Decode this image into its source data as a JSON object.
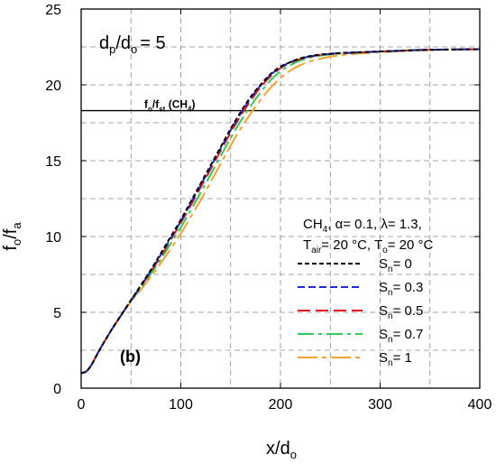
{
  "chart_data": {
    "type": "line",
    "xlabel": {
      "main": "x/d",
      "sub": "o"
    },
    "ylabel": {
      "main": "f",
      "sub1": "o",
      "mid": "/f",
      "sub2": "a"
    },
    "xlim": [
      0,
      400
    ],
    "ylim": [
      0,
      25
    ],
    "xticks": [
      0,
      100,
      200,
      300,
      400
    ],
    "yticks": [
      0,
      5,
      10,
      15,
      20,
      25
    ],
    "grid": "dashed",
    "annotations": {
      "ratio_label": {
        "d": "d",
        "p": "p",
        "slash": "/d",
        "o": "o",
        "rest": "= 5"
      },
      "panel_label": "(b)",
      "stoich_line_value": 18.3,
      "stoich_label": {
        "f": "f",
        "o": "o",
        "slash": "/f",
        "st": "st",
        "rest": " (CH",
        "four": "4",
        "close": ")"
      },
      "conditions_line1": {
        "a": "CH",
        "b": "4",
        "c": ", α= 0.1, λ= 1.3,"
      },
      "conditions_line2": {
        "a": "T",
        "b": "air",
        "c": "= 20 °C, T",
        "d": "o",
        "e": "= 20 °C"
      }
    },
    "legend_position": "right-center",
    "series": [
      {
        "name_main": "S",
        "name_sub": "n",
        "name_rest": "= 0",
        "color": "#000000",
        "dash": "5,3",
        "x": [
          0,
          5,
          10,
          15,
          20,
          30,
          40,
          50,
          60,
          70,
          80,
          90,
          100,
          110,
          120,
          130,
          140,
          150,
          160,
          170,
          180,
          190,
          200,
          210,
          220,
          230,
          240,
          250,
          260,
          280,
          300,
          320,
          340,
          360,
          380,
          400
        ],
        "y": [
          1.0,
          1.1,
          1.5,
          2.1,
          2.7,
          3.8,
          4.8,
          5.8,
          6.8,
          7.8,
          8.9,
          10.0,
          11.1,
          12.3,
          13.5,
          14.7,
          15.9,
          17.1,
          18.2,
          19.2,
          20.0,
          20.7,
          21.2,
          21.5,
          21.75,
          21.9,
          22.0,
          22.05,
          22.1,
          22.15,
          22.2,
          22.25,
          22.3,
          22.32,
          22.34,
          22.35
        ]
      },
      {
        "name_main": "S",
        "name_sub": "n",
        "name_rest": "= 0.3",
        "color": "#1f2bd8",
        "dash": "8,4",
        "x": [
          0,
          5,
          10,
          15,
          20,
          30,
          40,
          50,
          60,
          70,
          80,
          90,
          100,
          110,
          120,
          130,
          140,
          150,
          160,
          170,
          180,
          190,
          200,
          210,
          220,
          230,
          240,
          250,
          260,
          280,
          300,
          320,
          340,
          360,
          380,
          400
        ],
        "y": [
          1.0,
          1.1,
          1.5,
          2.1,
          2.7,
          3.8,
          4.8,
          5.8,
          6.75,
          7.75,
          8.8,
          9.9,
          11.0,
          12.2,
          13.4,
          14.6,
          15.8,
          17.0,
          18.1,
          19.1,
          19.95,
          20.65,
          21.15,
          21.5,
          21.72,
          21.88,
          21.98,
          22.04,
          22.09,
          22.15,
          22.2,
          22.25,
          22.3,
          22.32,
          22.34,
          22.35
        ]
      },
      {
        "name_main": "S",
        "name_sub": "n",
        "name_rest": "= 0.5",
        "color": "#e8131b",
        "dash": "14,6",
        "x": [
          0,
          5,
          10,
          15,
          20,
          30,
          40,
          50,
          60,
          70,
          80,
          90,
          100,
          110,
          120,
          130,
          140,
          150,
          160,
          170,
          180,
          190,
          200,
          210,
          220,
          230,
          240,
          250,
          260,
          280,
          300,
          320,
          340,
          360,
          380,
          400
        ],
        "y": [
          1.0,
          1.1,
          1.5,
          2.1,
          2.7,
          3.8,
          4.8,
          5.8,
          6.7,
          7.7,
          8.7,
          9.8,
          10.9,
          12.05,
          13.25,
          14.45,
          15.65,
          16.85,
          17.95,
          18.95,
          19.85,
          20.55,
          21.1,
          21.45,
          21.7,
          21.86,
          21.97,
          22.03,
          22.08,
          22.14,
          22.2,
          22.25,
          22.3,
          22.32,
          22.34,
          22.35
        ]
      },
      {
        "name_main": "S",
        "name_sub": "n",
        "name_rest": "= 0.7",
        "color": "#2ecb55",
        "dash": "18,5,4,5",
        "x": [
          0,
          5,
          10,
          15,
          20,
          30,
          40,
          50,
          60,
          70,
          80,
          90,
          100,
          110,
          120,
          130,
          140,
          150,
          160,
          170,
          180,
          190,
          200,
          210,
          220,
          230,
          240,
          250,
          260,
          280,
          300,
          320,
          340,
          360,
          380,
          400
        ],
        "y": [
          1.0,
          1.1,
          1.5,
          2.1,
          2.7,
          3.8,
          4.8,
          5.75,
          6.6,
          7.55,
          8.5,
          9.55,
          10.6,
          11.75,
          12.9,
          14.1,
          15.3,
          16.5,
          17.6,
          18.6,
          19.5,
          20.3,
          20.9,
          21.3,
          21.6,
          21.8,
          21.93,
          22.0,
          22.06,
          22.13,
          22.19,
          22.24,
          22.29,
          22.32,
          22.34,
          22.35
        ]
      },
      {
        "name_main": "S",
        "name_sub": "n",
        "name_rest": "= 1",
        "color": "#f5a32a",
        "dash": "22,5,5,5",
        "x": [
          0,
          5,
          10,
          15,
          20,
          30,
          40,
          50,
          60,
          70,
          80,
          90,
          100,
          110,
          120,
          130,
          140,
          150,
          160,
          170,
          180,
          190,
          200,
          210,
          220,
          230,
          240,
          250,
          260,
          280,
          300,
          320,
          340,
          360,
          380,
          400
        ],
        "y": [
          1.0,
          1.1,
          1.5,
          2.1,
          2.7,
          3.8,
          4.8,
          5.7,
          6.5,
          7.35,
          8.25,
          9.2,
          10.2,
          11.3,
          12.4,
          13.6,
          14.8,
          16.0,
          17.1,
          18.1,
          19.0,
          19.8,
          20.45,
          20.95,
          21.3,
          21.55,
          21.72,
          21.85,
          21.95,
          22.07,
          22.15,
          22.22,
          22.27,
          22.31,
          22.34,
          22.35
        ]
      }
    ]
  }
}
